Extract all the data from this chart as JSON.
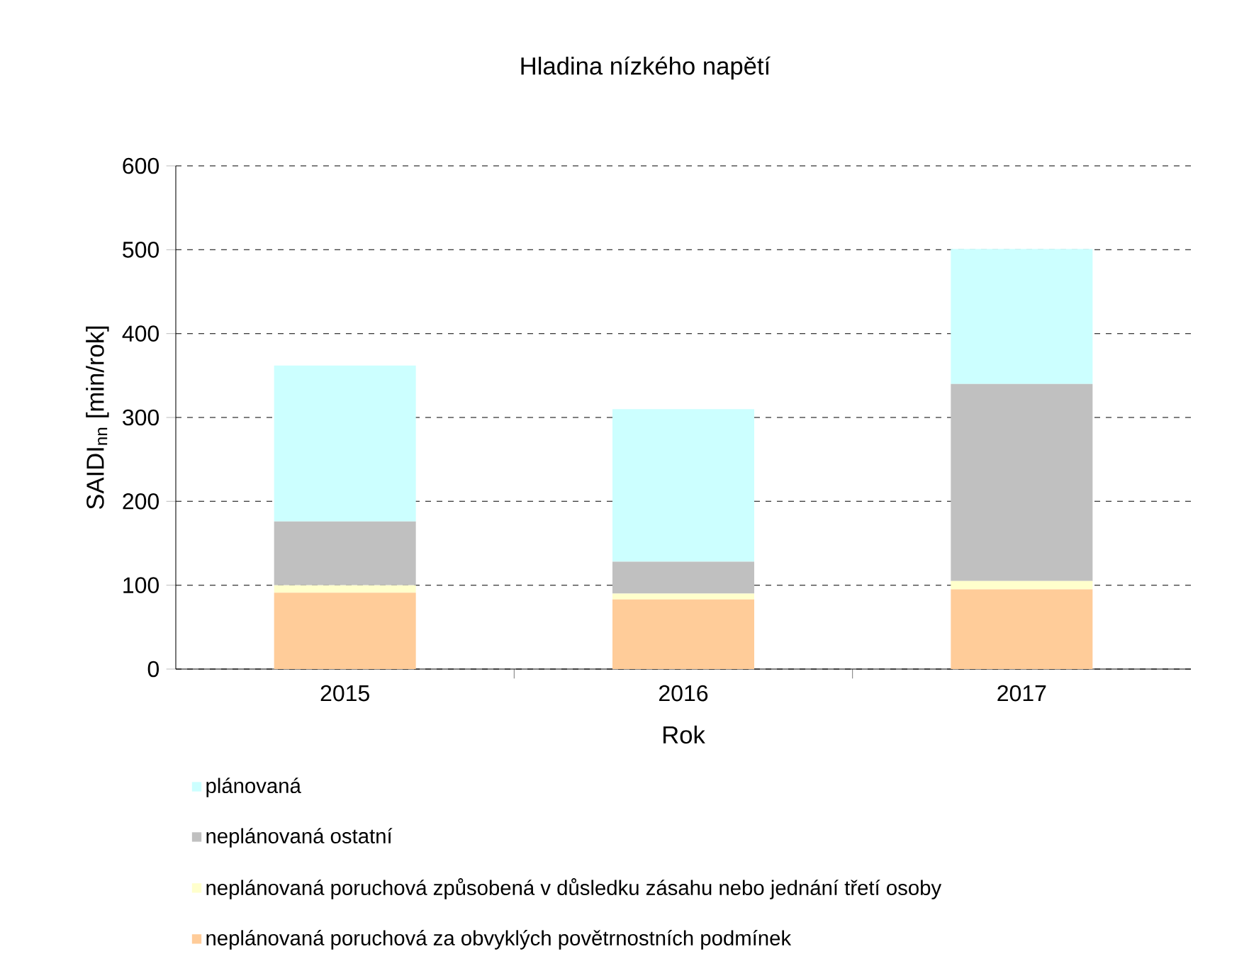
{
  "chart_data": {
    "type": "bar",
    "title": "Hladina nízkého napětí",
    "xlabel": "Rok",
    "ylabel": "SAIDI$_{nn}$ [min/rok]",
    "categories": [
      "2015",
      "2016",
      "2017"
    ],
    "stacked": true,
    "series": [
      {
        "name": "neplánovaná poruchová za obvyklých povětrnostních podmínek",
        "color": "#ffcc99",
        "values": [
          91,
          83,
          95
        ]
      },
      {
        "name": "neplánovaná poruchová způsobená v důsledku zásahu nebo jednání třetí osoby",
        "color": "#ffffcc",
        "values": [
          9,
          7,
          10
        ]
      },
      {
        "name": "neplánovaná ostatní",
        "color": "#c0c0c0",
        "values": [
          76,
          38,
          235
        ]
      },
      {
        "name": "plánovaná",
        "color": "#ccffff",
        "values": [
          186,
          182,
          161
        ]
      }
    ],
    "ylim": [
      0,
      600
    ],
    "yticks": [
      0,
      100,
      200,
      300,
      400,
      500,
      600
    ],
    "grid": "y",
    "legend": "bottom"
  }
}
